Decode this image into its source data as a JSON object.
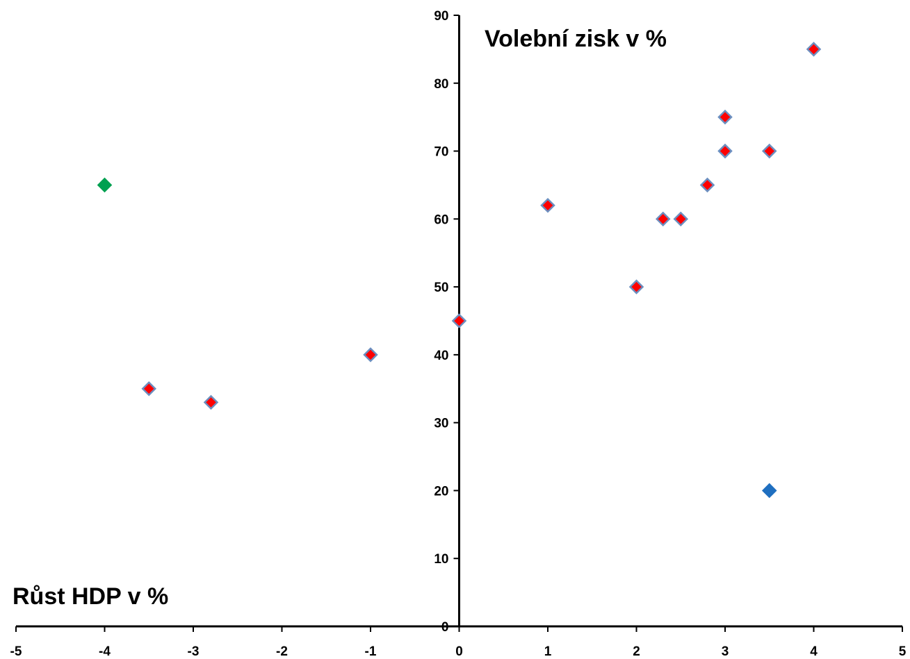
{
  "chart_data": {
    "type": "scatter",
    "xlabel": "Růst HDP v %",
    "ylabel": "Volební zisk v %",
    "xlim": [
      -5,
      5
    ],
    "ylim": [
      0,
      90
    ],
    "x_ticks": [
      "-5",
      "-4",
      "-3",
      "-2",
      "-1",
      "0",
      "1",
      "2",
      "3",
      "4",
      "5"
    ],
    "y_ticks": [
      "0",
      "10",
      "20",
      "30",
      "40",
      "50",
      "60",
      "70",
      "80",
      "90"
    ],
    "grid": false,
    "legend": "none",
    "marker": "diamond",
    "series": [
      {
        "color": "#ff0000",
        "edge_color": "#6c8ebf",
        "points": [
          {
            "x": -3.5,
            "y": 35
          },
          {
            "x": -2.8,
            "y": 33
          },
          {
            "x": -1,
            "y": 40
          },
          {
            "x": 0,
            "y": 45
          },
          {
            "x": 1,
            "y": 62
          },
          {
            "x": 2,
            "y": 50
          },
          {
            "x": 2.3,
            "y": 60
          },
          {
            "x": 2.5,
            "y": 60
          },
          {
            "x": 2.8,
            "y": 65
          },
          {
            "x": 3,
            "y": 70
          },
          {
            "x": 3,
            "y": 75
          },
          {
            "x": 3.5,
            "y": 70
          },
          {
            "x": 4,
            "y": 85
          }
        ]
      },
      {
        "color": "#00a050",
        "edge_color": "#00a050",
        "points": [
          {
            "x": -4,
            "y": 65
          }
        ]
      },
      {
        "color": "#1f6fc0",
        "edge_color": "#1f6fc0",
        "points": [
          {
            "x": 3.5,
            "y": 20
          }
        ]
      }
    ]
  }
}
